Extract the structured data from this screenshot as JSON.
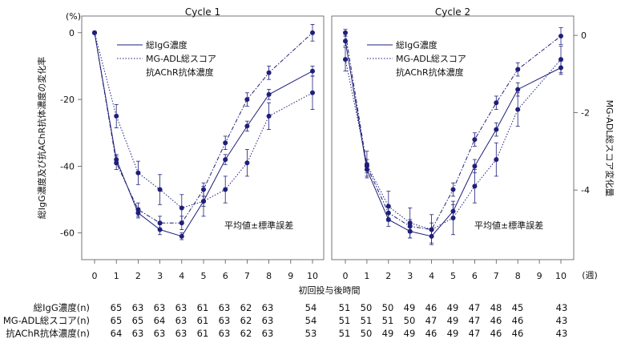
{
  "chart_data": {
    "type": "line",
    "y_left_unit": "(%)",
    "y_left_label": "総IgG濃度及び抗AChR抗体濃度の変化率",
    "y_right_label": "MG-ADL総スコア変化量",
    "x_label": "初回投与後時間",
    "x_unit": "(週)",
    "x_ticks": [
      0,
      1,
      2,
      3,
      4,
      5,
      6,
      7,
      8,
      9,
      10
    ],
    "y_left_ticks": [
      0,
      -20,
      -40,
      -60
    ],
    "y_left_lim": [
      -68,
      5
    ],
    "y_right_ticks": [
      0,
      -2,
      -4
    ],
    "y_right_lim": [
      -5.8,
      0.5
    ],
    "error_note": "平均値±標準誤差",
    "series_meta": [
      {
        "name": "総IgG濃度",
        "style": "solid",
        "axis": "left"
      },
      {
        "name": "MG-ADL総スコア",
        "style": "dotted",
        "axis": "right"
      },
      {
        "name": "抗AChR抗体濃度",
        "style": "dashdot",
        "axis": "left"
      }
    ],
    "panels": [
      {
        "title": "Cycle 1",
        "series": [
          {
            "name": "総IgG濃度",
            "x": [
              0,
              1,
              2,
              3,
              4,
              5,
              6,
              7,
              8,
              10
            ],
            "values": [
              0,
              -38,
              -54,
              -59,
              -61,
              -50.5,
              -38,
              -28,
              -18.5,
              -11.5
            ],
            "errors": [
              0,
              1.5,
              1.5,
              1.5,
              1,
              1.5,
              1.5,
              1.5,
              1.5,
              1.5
            ]
          },
          {
            "name": "MG-ADL総スコア",
            "x": [
              0,
              1,
              2,
              3,
              4,
              5,
              6,
              7,
              8,
              10
            ],
            "values": [
              0,
              -25,
              -42,
              -47,
              -52.5,
              -50.5,
              -47,
              -39,
              -25,
              -18
            ],
            "errors": [
              0,
              3.5,
              3.5,
              4.5,
              4,
              4.5,
              4,
              4,
              4,
              5
            ]
          },
          {
            "name": "抗AChR抗体濃度",
            "x": [
              0,
              1,
              2,
              3,
              4,
              5,
              6,
              7,
              8,
              10
            ],
            "values": [
              0,
              -39,
              -53,
              -57,
              -57,
              -47,
              -33,
              -20,
              -12,
              0
            ],
            "errors": [
              0,
              2,
              2,
              2,
              2,
              2,
              2,
              2,
              2,
              2.5
            ]
          }
        ]
      },
      {
        "title": "Cycle 2",
        "series": [
          {
            "name": "総IgG濃度",
            "x": [
              0,
              1,
              2,
              3,
              4,
              5,
              6,
              7,
              8,
              10
            ],
            "values": [
              -2.5,
              -41,
              -56,
              -59.5,
              -61,
              -53.5,
              -40,
              -29,
              -17,
              -10.5
            ],
            "errors": [
              1.5,
              2,
              2,
              2,
              2,
              2,
              2,
              2,
              2,
              2
            ]
          },
          {
            "name": "MG-ADL総スコア",
            "x": [
              0,
              1,
              2,
              3,
              4,
              5,
              6,
              7,
              8,
              10
            ],
            "values": [
              -8,
              -39.5,
              -52,
              -57,
              -59,
              -55.5,
              -46,
              -38,
              -23,
              -8
            ],
            "errors": [
              3.5,
              4,
              4.5,
              4.5,
              4.5,
              5,
              5,
              5,
              5,
              4
            ]
          },
          {
            "name": "抗AChR抗体濃度",
            "x": [
              0,
              1,
              2,
              3,
              4,
              5,
              6,
              7,
              8,
              10
            ],
            "values": [
              0,
              -40,
              -54,
              -58,
              -59,
              -47,
              -32,
              -21,
              -11,
              -1
            ],
            "errors": [
              1,
              2,
              2,
              2,
              2,
              2,
              2,
              2,
              2,
              2.5
            ]
          }
        ]
      }
    ],
    "n_table": {
      "rows": [
        {
          "label": "総IgG濃度(n)",
          "cycle1": [
            "65",
            "63",
            "63",
            "63",
            "61",
            "63",
            "62",
            "63",
            "",
            "54"
          ],
          "cycle2": [
            "51",
            "50",
            "50",
            "49",
            "46",
            "49",
            "47",
            "48",
            "45",
            "",
            "43"
          ]
        },
        {
          "label": "MG-ADL総スコア(n)",
          "cycle1": [
            "65",
            "65",
            "64",
            "63",
            "61",
            "63",
            "62",
            "63",
            "",
            "54"
          ],
          "cycle2": [
            "51",
            "51",
            "51",
            "50",
            "47",
            "49",
            "47",
            "46",
            "46",
            "",
            "43"
          ]
        },
        {
          "label": "抗AChR抗体濃度(n)",
          "cycle1": [
            "64",
            "63",
            "63",
            "63",
            "61",
            "63",
            "62",
            "63",
            "",
            "53"
          ],
          "cycle2": [
            "51",
            "50",
            "49",
            "49",
            "46",
            "49",
            "47",
            "46",
            "46",
            "",
            "43"
          ]
        }
      ]
    }
  }
}
